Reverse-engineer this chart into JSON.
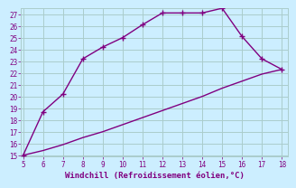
{
  "xlabel": "Windchill (Refroidissement éolien,°C)",
  "x_upper": [
    5,
    6,
    7,
    8,
    9,
    10,
    11,
    12,
    13,
    14,
    15,
    16,
    17,
    18
  ],
  "y_upper": [
    15.0,
    18.7,
    20.2,
    23.2,
    24.2,
    25.0,
    26.1,
    27.1,
    27.1,
    27.1,
    27.5,
    25.1,
    23.2,
    22.3
  ],
  "x_lower": [
    5,
    6,
    7,
    8,
    9,
    10,
    11,
    12,
    13,
    14,
    15,
    16,
    17,
    18
  ],
  "y_lower": [
    15.0,
    15.4,
    15.9,
    16.5,
    17.0,
    17.6,
    18.2,
    18.8,
    19.4,
    20.0,
    20.7,
    21.3,
    21.9,
    22.3
  ],
  "line_color": "#800080",
  "bg_color": "#cceeff",
  "grid_color": "#aacccc",
  "xlim": [
    5,
    18
  ],
  "ylim": [
    15,
    27
  ],
  "yticks": [
    15,
    16,
    17,
    18,
    19,
    20,
    21,
    22,
    23,
    24,
    25,
    26,
    27
  ],
  "xticks": [
    5,
    6,
    7,
    8,
    9,
    10,
    11,
    12,
    13,
    14,
    15,
    16,
    17,
    18
  ],
  "linewidth": 1.0,
  "tick_fontsize": 5.5,
  "xlabel_fontsize": 6.5,
  "markersize": 4.5
}
